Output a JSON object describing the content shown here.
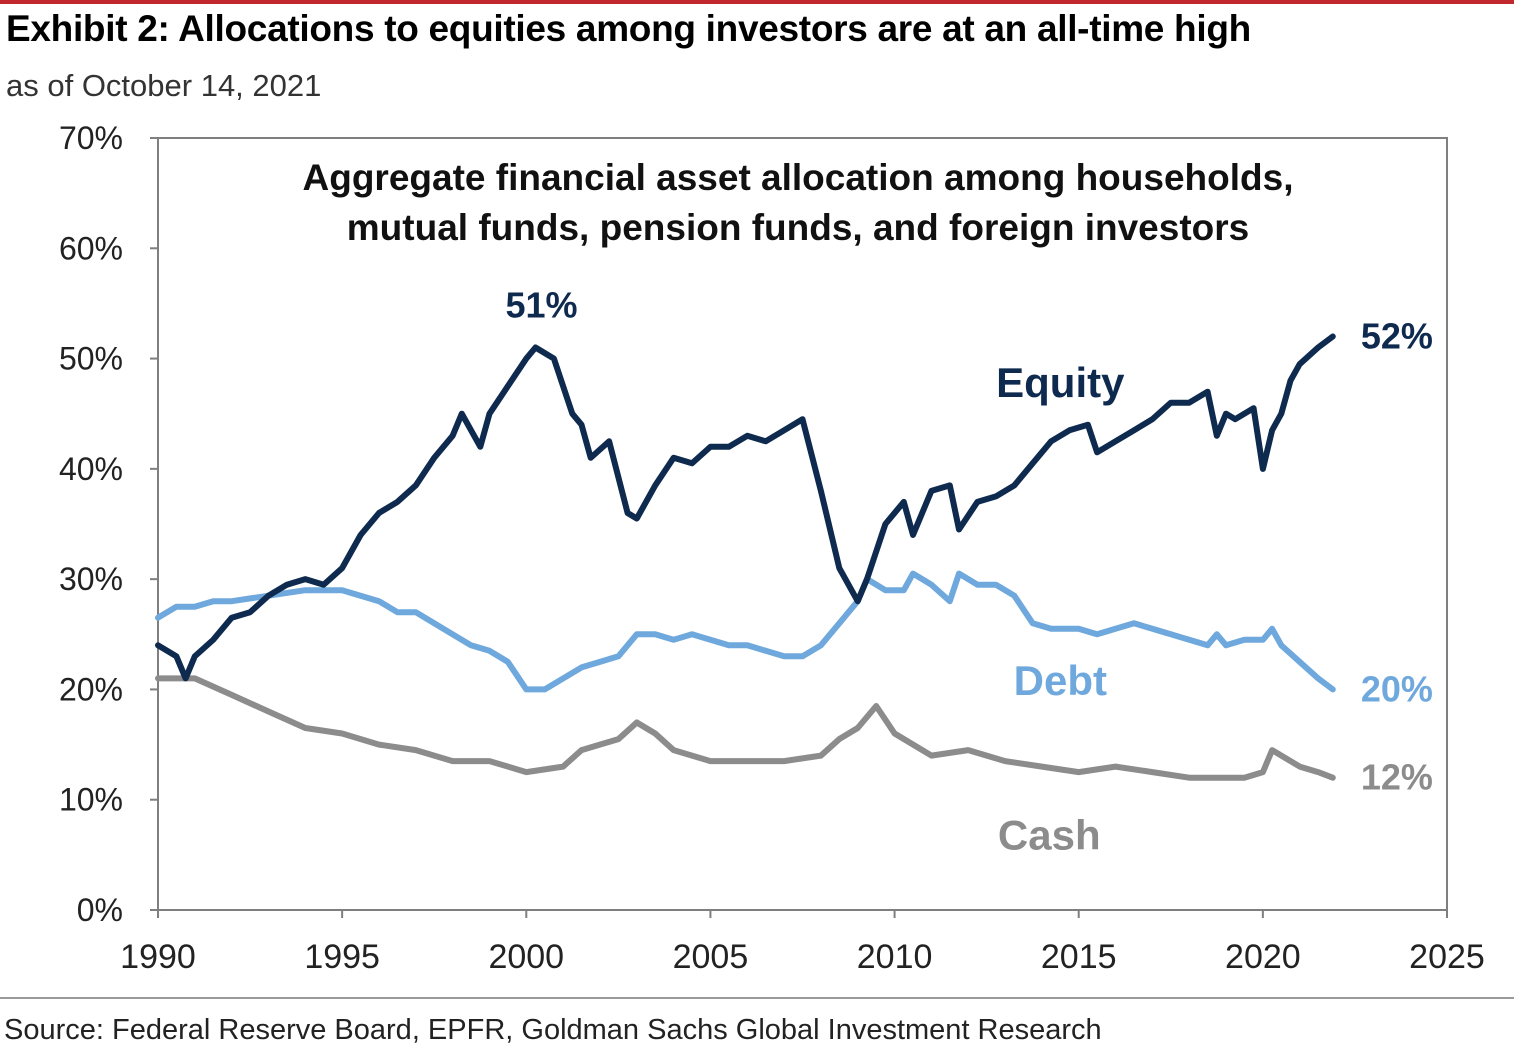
{
  "header": {
    "title": "Exhibit 2: Allocations to equities among investors are at an all-time high",
    "subtitle": "as of October 14, 2021"
  },
  "footer": {
    "source": "Source: Federal Reserve Board, EPFR, Goldman Sachs Global Investment Research"
  },
  "colors": {
    "equity": "#0f2a4f",
    "debt": "#6fa8dc",
    "cash": "#8c8c8c",
    "accent_rule": "#c0282d"
  },
  "chart_data": {
    "type": "line",
    "title": "Aggregate financial asset allocation among households, mutual funds, pension funds, and foreign investors",
    "title_lines": [
      "Aggregate financial asset allocation among households,",
      "mutual funds, pension funds, and foreign investors"
    ],
    "xlabel": "",
    "ylabel": "",
    "xlim": [
      1990,
      2025
    ],
    "ylim": [
      0,
      70
    ],
    "x_ticks": [
      "1990",
      "1995",
      "2000",
      "2005",
      "2010",
      "2015",
      "2020",
      "2025"
    ],
    "y_ticks": [
      "0%",
      "10%",
      "20%",
      "30%",
      "40%",
      "50%",
      "60%",
      "70%"
    ],
    "grid": false,
    "legend": "inline labels",
    "series": [
      {
        "name": "Equity",
        "color": "#0f2a4f",
        "end_label": "52%",
        "peak_label": "51%",
        "x": [
          1990,
          1990.5,
          1990.75,
          1991,
          1991.5,
          1992,
          1992.5,
          1993,
          1993.5,
          1994,
          1994.5,
          1995,
          1995.5,
          1996,
          1996.5,
          1997,
          1997.5,
          1998,
          1998.25,
          1998.75,
          1999,
          1999.5,
          2000,
          2000.25,
          2000.75,
          2001.25,
          2001.5,
          2001.75,
          2002.25,
          2002.75,
          2003,
          2003.5,
          2004,
          2004.5,
          2005,
          2005.5,
          2006,
          2006.5,
          2007,
          2007.5,
          2008,
          2008.5,
          2009.0,
          2009.25,
          2009.75,
          2010.25,
          2010.5,
          2011,
          2011.5,
          2011.75,
          2012.25,
          2012.75,
          2013.25,
          2013.75,
          2014.25,
          2014.75,
          2015.25,
          2015.5,
          2016,
          2016.5,
          2017,
          2017.5,
          2018,
          2018.5,
          2018.75,
          2019,
          2019.25,
          2019.75,
          2020,
          2020.25,
          2020.5,
          2020.75,
          2021,
          2021.5,
          2021.9
        ],
        "y": [
          24,
          23,
          21,
          23,
          24.5,
          26.5,
          27,
          28.5,
          29.5,
          30,
          29.5,
          31,
          34,
          36,
          37,
          38.5,
          41,
          43,
          45,
          42,
          45,
          47.5,
          50,
          51,
          50,
          45,
          44,
          41,
          42.5,
          36,
          35.5,
          38.5,
          41,
          40.5,
          42,
          42,
          43,
          42.5,
          43.5,
          44.5,
          38,
          31,
          28,
          30,
          35,
          37,
          34,
          38,
          38.5,
          34.5,
          37,
          37.5,
          38.5,
          40.5,
          42.5,
          43.5,
          44,
          41.5,
          42.5,
          43.5,
          44.5,
          46,
          46,
          47,
          43,
          45,
          44.5,
          45.5,
          40,
          43.5,
          45,
          48,
          49.5,
          51,
          52
        ]
      },
      {
        "name": "Debt",
        "color": "#6fa8dc",
        "end_label": "20%",
        "x": [
          1990,
          1990.5,
          1991,
          1991.5,
          1992,
          1993,
          1994,
          1995,
          1996,
          1996.5,
          1997,
          1998,
          1998.5,
          1999,
          1999.5,
          2000,
          2000.5,
          2001,
          2001.5,
          2002,
          2002.5,
          2003,
          2003.5,
          2004,
          2004.5,
          2005,
          2005.5,
          2006,
          2006.5,
          2007,
          2007.5,
          2008,
          2008.5,
          2009,
          2009.25,
          2009.75,
          2010.25,
          2010.5,
          2011,
          2011.5,
          2011.75,
          2012.25,
          2012.75,
          2013.25,
          2013.75,
          2014.25,
          2015,
          2015.5,
          2016,
          2016.5,
          2017,
          2017.5,
          2018,
          2018.5,
          2018.75,
          2019,
          2019.5,
          2020,
          2020.25,
          2020.5,
          2021,
          2021.5,
          2021.9
        ],
        "y": [
          26.5,
          27.5,
          27.5,
          28,
          28,
          28.5,
          29,
          29,
          28,
          27,
          27,
          25,
          24,
          23.5,
          22.5,
          20,
          20,
          21,
          22,
          22.5,
          23,
          25,
          25,
          24.5,
          25,
          24.5,
          24,
          24,
          23.5,
          23,
          23,
          24,
          26,
          28,
          30,
          29,
          29,
          30.5,
          29.5,
          28,
          30.5,
          29.5,
          29.5,
          28.5,
          26,
          25.5,
          25.5,
          25,
          25.5,
          26,
          25.5,
          25,
          24.5,
          24,
          25,
          24,
          24.5,
          24.5,
          25.5,
          24,
          22.5,
          21,
          20
        ]
      },
      {
        "name": "Cash",
        "color": "#8c8c8c",
        "end_label": "12%",
        "x": [
          1990,
          1991,
          1992,
          1993,
          1994,
          1995,
          1996,
          1997,
          1998,
          1999,
          2000,
          2001,
          2001.5,
          2002,
          2002.5,
          2003,
          2003.5,
          2004,
          2005,
          2006,
          2007,
          2008,
          2008.5,
          2009.0,
          2009.5,
          2010,
          2011,
          2012,
          2013,
          2014,
          2015,
          2016,
          2017,
          2018,
          2019,
          2019.5,
          2020,
          2020.25,
          2020.75,
          2021,
          2021.5,
          2021.9
        ],
        "y": [
          21,
          21,
          19.5,
          18,
          16.5,
          16,
          15,
          14.5,
          13.5,
          13.5,
          12.5,
          13,
          14.5,
          15,
          15.5,
          17,
          16,
          14.5,
          13.5,
          13.5,
          13.5,
          14,
          15.5,
          16.5,
          18.5,
          16,
          14,
          14.5,
          13.5,
          13,
          12.5,
          13,
          12.5,
          12,
          12,
          12,
          12.5,
          14.5,
          13.5,
          13,
          12.5,
          12
        ]
      }
    ],
    "annotations": [
      {
        "text": "Equity",
        "series": "Equity",
        "x": 2014.5,
        "y": 46.5
      },
      {
        "text": "Debt",
        "series": "Debt",
        "x": 2014.5,
        "y": 19.5
      },
      {
        "text": "Cash",
        "series": "Cash",
        "x": 2014.2,
        "y": 5.5
      }
    ]
  }
}
